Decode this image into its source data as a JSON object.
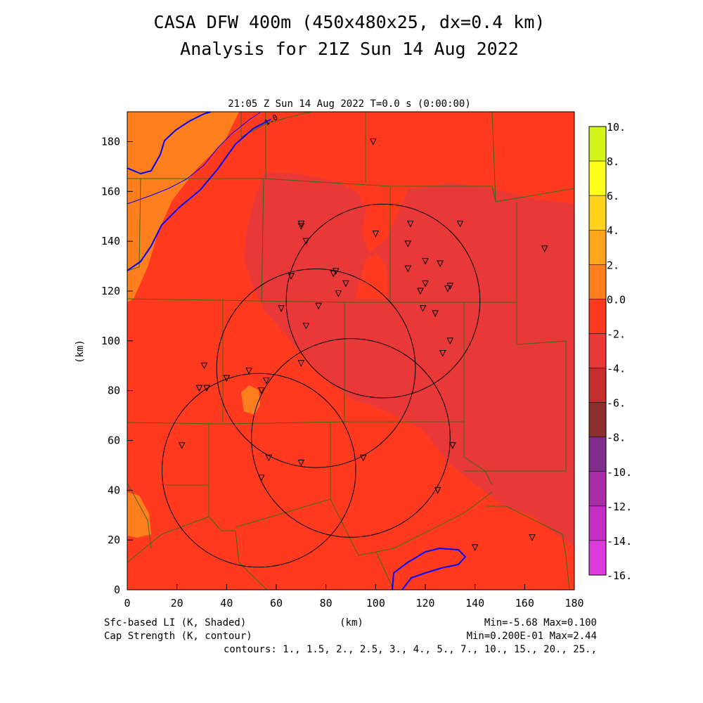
{
  "title_line1": "CASA DFW 400m (450x480x25, dx=0.4 km)",
  "title_line2": "Analysis for 21Z Sun 14 Aug 2022",
  "subtitle": "21:05 Z Sun 14 Aug 2022    T=0.0 s (0:00:00)",
  "x_axis": {
    "label": "(km)",
    "range": [
      0,
      180
    ],
    "ticks": [
      0,
      20,
      40,
      60,
      80,
      100,
      120,
      140,
      160,
      180
    ]
  },
  "y_axis": {
    "label": "(km)",
    "range": [
      0,
      192
    ],
    "ticks": [
      0,
      20,
      40,
      60,
      80,
      100,
      120,
      140,
      160,
      180
    ]
  },
  "colors": {
    "lighter_orange": "#ff7f1f",
    "base_red_orange": "#ff3a1f",
    "darker_red": "#e83838",
    "county_line": "#3c6a14",
    "contour_black": "#000000",
    "contour_blue": "#0000ff"
  },
  "colorbar": {
    "labels": [
      "10.",
      "8.",
      "6.",
      "4.",
      "2.",
      "0.0",
      "-2.",
      "-4.",
      "-6.",
      "-8.",
      "-10.",
      "-12.",
      "-14.",
      "-16."
    ],
    "colors": [
      "#a8e81c",
      "#d4f51c",
      "#ffff1c",
      "#ffd21c",
      "#ffa51c",
      "#ff7f1f",
      "#ff3a1f",
      "#e83838",
      "#c42e2e",
      "#8c2e2e",
      "#7f2e8c",
      "#a82ea8",
      "#c42ec4",
      "#dc3cdc"
    ]
  },
  "contour_label": "1.0",
  "radar_circles": [
    {
      "cx": 103,
      "cy": 116,
      "r": 39
    },
    {
      "cx": 76,
      "cy": 89,
      "r": 40
    },
    {
      "cx": 90,
      "cy": 61,
      "r": 40
    },
    {
      "cx": 53,
      "cy": 48,
      "r": 39
    }
  ],
  "stations": [
    [
      99,
      180
    ],
    [
      70,
      147
    ],
    [
      70,
      146
    ],
    [
      72,
      140
    ],
    [
      100,
      143
    ],
    [
      114,
      147
    ],
    [
      113,
      139
    ],
    [
      134,
      147
    ],
    [
      168,
      137
    ],
    [
      66,
      126
    ],
    [
      84,
      128
    ],
    [
      83,
      127
    ],
    [
      88,
      123
    ],
    [
      85,
      119
    ],
    [
      113,
      129
    ],
    [
      120,
      132
    ],
    [
      126,
      131
    ],
    [
      120,
      123
    ],
    [
      118,
      120
    ],
    [
      129,
      121
    ],
    [
      130,
      122
    ],
    [
      62,
      113
    ],
    [
      77,
      114
    ],
    [
      72,
      106
    ],
    [
      119,
      113
    ],
    [
      124,
      111
    ],
    [
      130,
      100
    ],
    [
      127,
      95
    ],
    [
      31,
      90
    ],
    [
      70,
      91
    ],
    [
      49,
      88
    ],
    [
      40,
      85
    ],
    [
      29,
      81
    ],
    [
      32,
      81
    ],
    [
      56,
      84
    ],
    [
      54,
      80
    ],
    [
      22,
      58
    ],
    [
      131,
      58
    ],
    [
      57,
      53
    ],
    [
      70,
      51
    ],
    [
      95,
      53
    ],
    [
      54,
      45
    ],
    [
      125,
      40
    ],
    [
      140,
      17
    ],
    [
      163,
      21
    ]
  ],
  "footer": {
    "left_line1": "Sfc-based LI (K, Shaded)",
    "left_line2": "Cap Strength (K, contour)",
    "center": "(km)",
    "right_line1": "Min=-5.68 Max=0.100",
    "right_line2": "Min=0.200E-01 Max=2.44",
    "contours": "contours: 1., 1.5, 2., 2.5, 3., 4., 5., 7., 10., 15., 20., 25.,"
  }
}
